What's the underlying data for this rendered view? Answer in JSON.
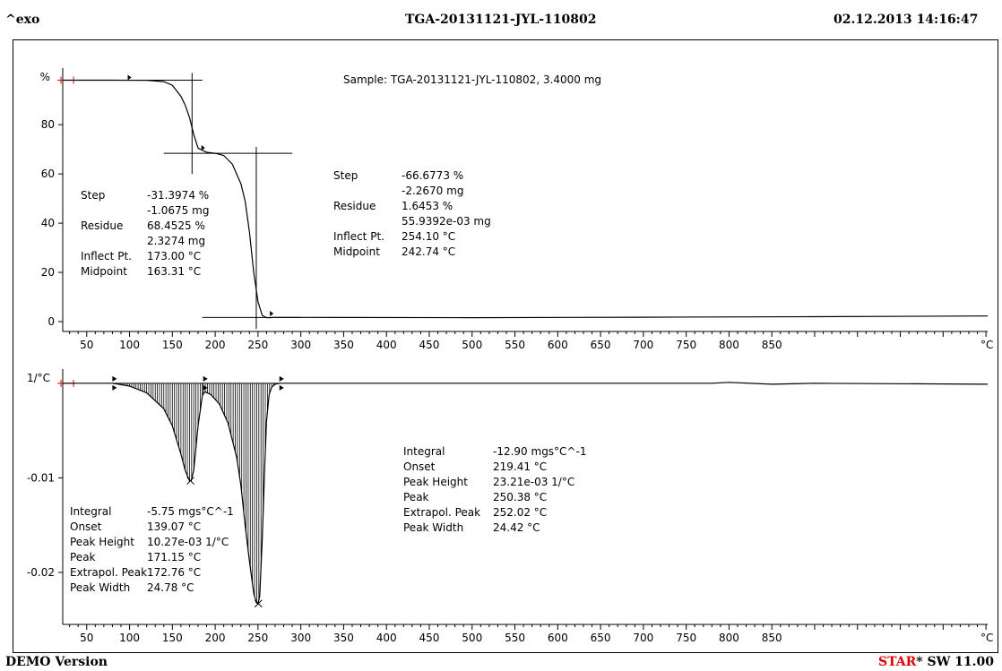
{
  "header": {
    "left": "^exo",
    "center": "TGA-20131121-JYL-110802",
    "right": "02.12.2013 14:16:47"
  },
  "footer": {
    "left": "DEMO Version",
    "right_star": "STAR",
    "right_rest": "SW 11.00"
  },
  "chart_data": [
    {
      "type": "line",
      "ylabel": "%",
      "xunit": "°C",
      "xlim": [
        22,
        1102
      ],
      "ylim": [
        -4,
        103
      ],
      "yticks": [
        0,
        20,
        40,
        60,
        80
      ],
      "xticks": [
        50,
        100,
        150,
        200,
        250,
        300,
        350,
        400,
        450,
        500,
        550,
        600,
        650,
        700,
        750,
        800,
        850
      ],
      "sample_label": "Sample: TGA-20131121-JYL-110802, 3.4000 mg",
      "series": [
        {
          "x": [
            22,
            80,
            120,
            140,
            150,
            160,
            165,
            170,
            175,
            180,
            190,
            200,
            210,
            220,
            230,
            235,
            240,
            245,
            250,
            255,
            260,
            262,
            270,
            300,
            500,
            700,
            900,
            1102
          ],
          "y": [
            98.1,
            98.1,
            98.0,
            97.5,
            96.0,
            91.5,
            88.0,
            83.0,
            76.0,
            70.5,
            68.8,
            68.4,
            67.5,
            64.0,
            56.0,
            49.0,
            36.5,
            20.0,
            8.0,
            2.5,
            1.6,
            1.6,
            1.7,
            1.7,
            1.6,
            1.8,
            2.0,
            2.3
          ]
        }
      ],
      "annotations": [
        {
          "rows": [
            [
              "Step",
              "-31.3974 %"
            ],
            [
              "",
              "-1.0675 mg"
            ],
            [
              "Residue",
              "68.4525 %"
            ],
            [
              "",
              "2.3274 mg"
            ],
            [
              "Inflect Pt.",
              "173.00 °C"
            ],
            [
              "Midpoint",
              "163.31 °C"
            ]
          ]
        },
        {
          "rows": [
            [
              "Step",
              "-66.6773 %"
            ],
            [
              "",
              "-2.2670 mg"
            ],
            [
              "Residue",
              "1.6453 %"
            ],
            [
              "",
              "55.9392e-03 mg"
            ],
            [
              "Inflect Pt.",
              "254.10 °C"
            ],
            [
              "Midpoint",
              "242.74 °C"
            ]
          ]
        }
      ]
    },
    {
      "type": "area",
      "ylabel": "1/°C",
      "xunit": "°C",
      "xlim": [
        22,
        1102
      ],
      "ylim": [
        -0.0255,
        0.0015
      ],
      "yticks": [
        -0.01,
        -0.02
      ],
      "ytick_labels": [
        "-0.01",
        "-0.02"
      ],
      "xticks": [
        50,
        100,
        150,
        200,
        250,
        300,
        350,
        400,
        450,
        500,
        550,
        600,
        650,
        700,
        750,
        800,
        850
      ],
      "series": [
        {
          "x": [
            22,
            80,
            100,
            120,
            140,
            150,
            160,
            165,
            170,
            172,
            175,
            180,
            185,
            188,
            195,
            205,
            215,
            225,
            230,
            235,
            240,
            245,
            248,
            250,
            252,
            255,
            258,
            260,
            263,
            266,
            270,
            275,
            300,
            500,
            780,
            800,
            850,
            900,
            1102
          ],
          "y": [
            0,
            0,
            -0.0003,
            -0.001,
            -0.0027,
            -0.0045,
            -0.0075,
            -0.0092,
            -0.0103,
            -0.0103,
            -0.0092,
            -0.0045,
            -0.0013,
            -0.0009,
            -0.0012,
            -0.0022,
            -0.0042,
            -0.0078,
            -0.0108,
            -0.015,
            -0.0188,
            -0.0222,
            -0.0232,
            -0.0233,
            -0.0225,
            -0.0165,
            -0.0085,
            -0.004,
            -0.0012,
            -0.0004,
            -0.0001,
            0,
            0,
            0,
            0,
            0.0001,
            -0.0001,
            0,
            -0.0001
          ]
        }
      ],
      "peaks": [
        {
          "x": 171.15,
          "y": -0.0103
        },
        {
          "x": 250.38,
          "y": -0.0233
        }
      ],
      "annotations": [
        {
          "rows": [
            [
              "Integral",
              "-5.75 mgs°C^-1"
            ],
            [
              "Onset",
              "139.07 °C"
            ],
            [
              "Peak Height",
              "10.27e-03 1/°C"
            ],
            [
              "Peak",
              "171.15 °C"
            ],
            [
              "Extrapol. Peak",
              "172.76 °C"
            ],
            [
              "Peak Width",
              "24.78 °C"
            ]
          ]
        },
        {
          "rows": [
            [
              "Integral",
              "-12.90 mgs°C^-1"
            ],
            [
              "Onset",
              "219.41 °C"
            ],
            [
              "Peak Height",
              "23.21e-03 1/°C"
            ],
            [
              "Peak",
              "250.38 °C"
            ],
            [
              "Extrapol. Peak",
              "252.02 °C"
            ],
            [
              "Peak Width",
              "24.42 °C"
            ]
          ]
        }
      ]
    }
  ],
  "colors": {
    "line": "#000000",
    "limit_marker": "#e00000",
    "star_accent": "#e00000"
  }
}
